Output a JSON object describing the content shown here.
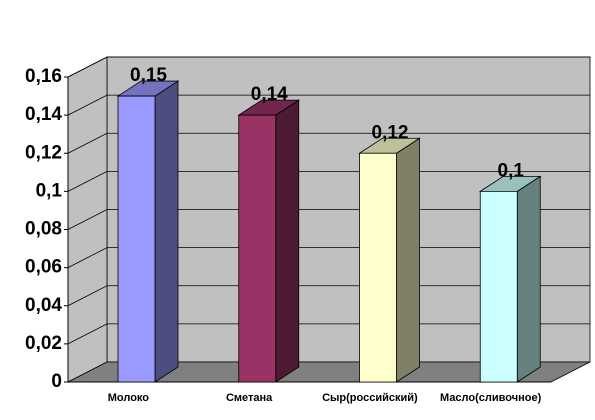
{
  "chart_data": {
    "type": "bar3d",
    "categories": [
      "Молоко",
      "Сметана",
      "Сыр(российский)",
      "Масло(сливочное)"
    ],
    "values": [
      0.15,
      0.14,
      0.12,
      0.1
    ],
    "value_labels": [
      "0,15",
      "0,14",
      "0,12",
      "0,1"
    ],
    "colors": [
      "#9999ff",
      "#993366",
      "#ffffcc",
      "#ccffff"
    ],
    "ylim": [
      0,
      0.16
    ],
    "yticks": [
      0,
      {
        "value": 0.02,
        "label": "0,02"
      },
      {
        "value": 0.04,
        "label": "0,04"
      },
      {
        "value": 0.06,
        "label": "0,06"
      },
      {
        "value": 0.08,
        "label": "0,08"
      },
      {
        "value": 0.1,
        "label": "0,1"
      },
      {
        "value": 0.12,
        "label": "0,12"
      },
      {
        "value": 0.14,
        "label": "0,14"
      },
      {
        "value": 0.16,
        "label": "0,16"
      }
    ],
    "grid": true
  }
}
